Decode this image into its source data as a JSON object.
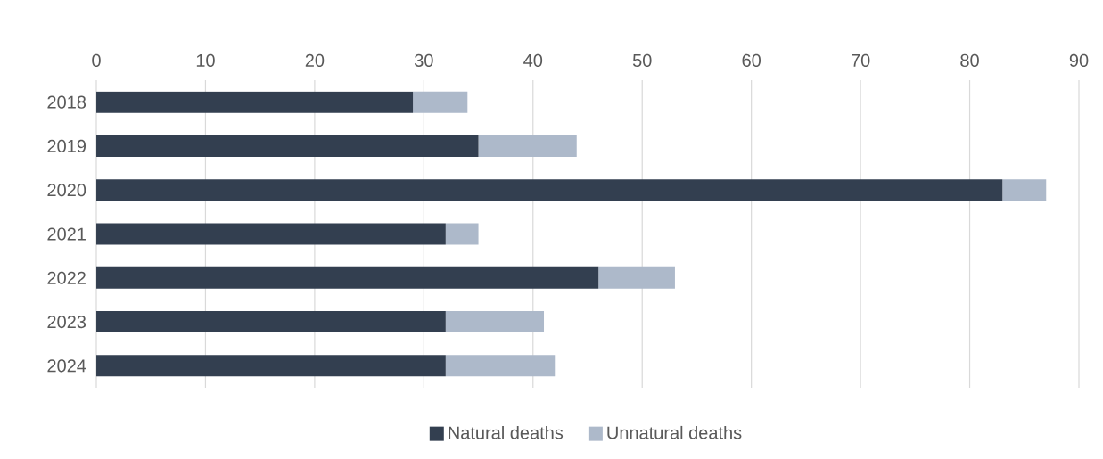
{
  "chart_data": {
    "type": "bar",
    "orientation": "horizontal",
    "stacked": true,
    "categories": [
      "2018",
      "2019",
      "2020",
      "2021",
      "2022",
      "2023",
      "2024"
    ],
    "series": [
      {
        "name": "Natural deaths",
        "color": "#333f50",
        "values": [
          29,
          35,
          83,
          32,
          46,
          32,
          32
        ]
      },
      {
        "name": "Unnatural deaths",
        "color": "#adb9ca",
        "values": [
          5,
          9,
          4,
          3,
          7,
          9,
          10
        ]
      }
    ],
    "xlim": [
      0,
      90
    ],
    "xticks": [
      0,
      10,
      20,
      30,
      40,
      50,
      60,
      70,
      80,
      90
    ],
    "grid": "x",
    "legend": "bottom"
  }
}
